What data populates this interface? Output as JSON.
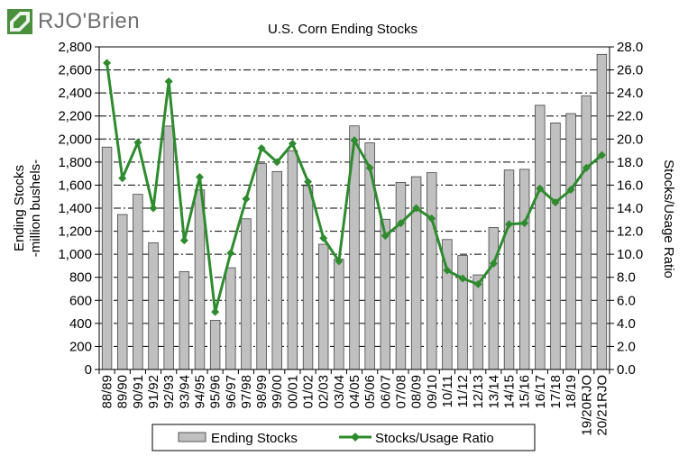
{
  "logo": {
    "text": "RJO'Brien",
    "mark_color": "#4a8f3c"
  },
  "chart_data": {
    "type": "bar+line",
    "title": "U.S. Corn Ending Stocks",
    "ylabel_left": [
      "Ending Stocks",
      "-million bushels-"
    ],
    "ylabel_right": "Stocks/Usage Ratio",
    "ylim_left": [
      0,
      2800
    ],
    "ylim_right": [
      0,
      28
    ],
    "yticks_left": [
      "0",
      "200",
      "400",
      "600",
      "800",
      "1,000",
      "1,200",
      "1,400",
      "1,600",
      "1,800",
      "2,000",
      "2,200",
      "2,400",
      "2,600",
      "2,800"
    ],
    "yticks_right": [
      "0.0",
      "2.0",
      "4.0",
      "6.0",
      "8.0",
      "10.0",
      "12.0",
      "14.0",
      "16.0",
      "18.0",
      "20.0",
      "22.0",
      "24.0",
      "26.0",
      "28.0"
    ],
    "grid": "horizontal dashed",
    "categories": [
      "88/89",
      "89/90",
      "90/91",
      "91/92",
      "92/93",
      "93/94",
      "94/95",
      "95/96",
      "96/97",
      "97/98",
      "98/99",
      "99/00",
      "00/01",
      "01/02",
      "02/03",
      "03/04",
      "04/05",
      "05/06",
      "06/07",
      "07/08",
      "08/09",
      "09/10",
      "10/11",
      "11/12",
      "12/13",
      "13/14",
      "14/15",
      "15/16",
      "16/17",
      "17/18",
      "18/19",
      "19/20RJO",
      "20/21RJO"
    ],
    "series": [
      {
        "name": "Ending Stocks",
        "kind": "bar",
        "axis": "left",
        "color": "#c0c0c0",
        "values": [
          1930,
          1345,
          1520,
          1100,
          2113,
          850,
          1558,
          426,
          883,
          1308,
          1787,
          1718,
          1899,
          1596,
          1087,
          958,
          2114,
          1967,
          1304,
          1624,
          1673,
          1708,
          1128,
          989,
          821,
          1232,
          1731,
          1737,
          2293,
          2140,
          2221,
          2376,
          2735
        ]
      },
      {
        "name": "Stocks/Usage Ratio",
        "kind": "line",
        "axis": "right",
        "color": "#2e8b2e",
        "values": [
          26.6,
          16.6,
          19.7,
          14.0,
          25.0,
          11.2,
          16.7,
          5.0,
          10.1,
          14.8,
          19.2,
          18.0,
          19.6,
          16.3,
          11.4,
          9.4,
          19.9,
          17.5,
          11.6,
          12.7,
          14.0,
          13.1,
          8.6,
          7.9,
          7.4,
          9.2,
          12.6,
          12.7,
          15.7,
          14.5,
          15.6,
          17.5,
          18.6
        ]
      }
    ],
    "legend": "bottom-center"
  }
}
